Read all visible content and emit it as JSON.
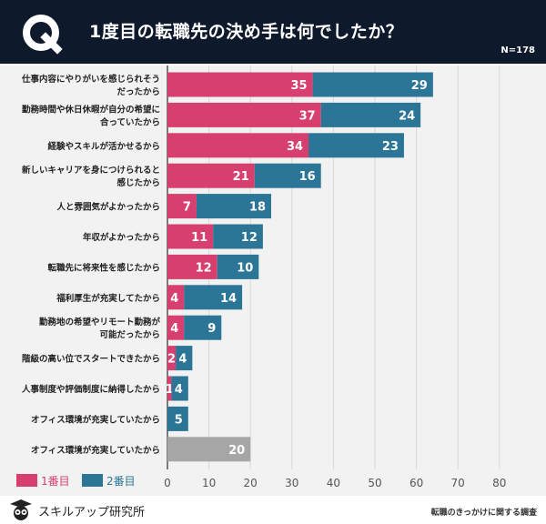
{
  "header": {
    "title": "1度目の転職先の決め手は何でしたか？",
    "n_label": "N=178",
    "logo_letter": "Q"
  },
  "footer": {
    "brand": "スキルアップ研究所",
    "source": "転職のきっかけに関する調査"
  },
  "colors": {
    "first": "#d63f6e",
    "second": "#2b7596",
    "other": "#a6a6a6",
    "header_bg": "#0e1a2c"
  },
  "chart_data": {
    "type": "bar",
    "orientation": "horizontal",
    "stacked": true,
    "categories": [
      [
        "仕事内容にやりがいを感じられそう",
        "だったから"
      ],
      [
        "勤務時間や休日休暇が自分の希望に",
        "合っていたから"
      ],
      [
        "経験やスキルが活かせるから"
      ],
      [
        "新しいキャリアを身につけられると",
        "感じたから"
      ],
      [
        "人と雰囲気がよかったから"
      ],
      [
        "年収がよかったから"
      ],
      [
        "転職先に将来性を感じたから"
      ],
      [
        "福利厚生が充実してたから"
      ],
      [
        "勤務地の希望やリモート勤務が",
        "可能だったから"
      ],
      [
        "階級の高い位でスタートできたから"
      ],
      [
        "人事制度や評価制度に納得したから"
      ],
      [
        "オフィス環境が充実していたから"
      ],
      [
        "オフィス環境が充実していたから"
      ]
    ],
    "series": [
      {
        "name": "1番目",
        "values": [
          35,
          37,
          34,
          21,
          7,
          11,
          12,
          4,
          4,
          2,
          1,
          0,
          null
        ]
      },
      {
        "name": "2番目",
        "values": [
          29,
          24,
          23,
          16,
          18,
          12,
          10,
          14,
          9,
          4,
          4,
          5,
          null
        ]
      },
      {
        "values": [
          null,
          null,
          null,
          null,
          null,
          null,
          null,
          null,
          null,
          null,
          null,
          null,
          20
        ]
      }
    ],
    "xlim": [
      0,
      80
    ],
    "xticks": [
      0,
      10,
      20,
      30,
      40,
      50,
      60,
      70,
      80
    ],
    "grid": true,
    "legend": "bottom-left"
  }
}
